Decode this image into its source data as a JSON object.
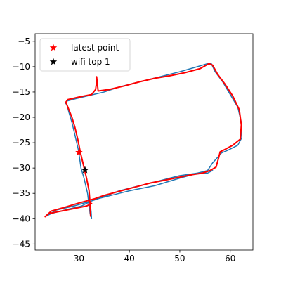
{
  "chart_data": {
    "type": "scatter",
    "title": "",
    "xlabel": "",
    "ylabel": "",
    "xlim": [
      21.3,
      64.5
    ],
    "ylim": [
      -46.2,
      -3.5
    ],
    "xticks": [
      20,
      30,
      40,
      50,
      60
    ],
    "yticks": [
      -45,
      -40,
      -35,
      -30,
      -25,
      -20,
      -15,
      -10,
      -5
    ],
    "grid": false,
    "legend_position": "top-left",
    "legend": [
      {
        "label": "latest point",
        "marker": "star",
        "color": "#ff0000"
      },
      {
        "label": "wifi top 1",
        "marker": "star",
        "color": "#000000"
      }
    ],
    "series": [
      {
        "style": "line",
        "color": "#1f77b4",
        "x": [
          32.1,
          32.4,
          32.5,
          32.2,
          31.7,
          31.0,
          30.4,
          29.9,
          29.2,
          28.6,
          28.0,
          27.6,
          27.3,
          27.6,
          29.5,
          32.0,
          35.0,
          38.0,
          42.0,
          46.0,
          50.0,
          53.5,
          55.5,
          56.2,
          57.0,
          58.5,
          60.0,
          61.5,
          62.2,
          62.3,
          61.5,
          59.5,
          58.3,
          57.4,
          56.5,
          55.5,
          53.5,
          50.0,
          46.0,
          42.0,
          38.0,
          34.5,
          32.5,
          29.0,
          25.5,
          23.5,
          24.5,
          27.5,
          30.5,
          32.5,
          34.0,
          38.0,
          40.0,
          45.0,
          50.0,
          53.0,
          55.5,
          56.5
        ],
        "y": [
          -36.5,
          -38.5,
          -40.0,
          -39.0,
          -35.0,
          -32.0,
          -30.0,
          -26.5,
          -23.5,
          -21.0,
          -19.0,
          -17.5,
          -17.2,
          -16.8,
          -16.3,
          -15.7,
          -15.0,
          -14.0,
          -13.0,
          -12.0,
          -11.0,
          -10.0,
          -9.4,
          -9.3,
          -11.0,
          -13.0,
          -15.5,
          -18.0,
          -21.0,
          -24.0,
          -25.5,
          -26.5,
          -27.0,
          -28.0,
          -29.0,
          -30.5,
          -31.0,
          -31.5,
          -32.5,
          -33.5,
          -34.5,
          -35.8,
          -36.5,
          -37.5,
          -38.3,
          -39.5,
          -39.0,
          -38.2,
          -37.5,
          -36.5,
          -36.0,
          -35.0,
          -34.5,
          -33.5,
          -32.0,
          -31.2,
          -31.0,
          -30.5
        ]
      },
      {
        "style": "line",
        "color": "#ff0000",
        "x": [
          32.3,
          32.2,
          32.0,
          31.5,
          30.9,
          30.3,
          29.8,
          29.2,
          28.6,
          28.0,
          27.6,
          27.4,
          27.8,
          30.0,
          32.5,
          33.3,
          33.5,
          33.5,
          33.8,
          36.0,
          39.0,
          42.0,
          45.0,
          48.0,
          51.0,
          54.0,
          55.8,
          56.5,
          57.5,
          59.0,
          60.5,
          61.8,
          62.2,
          62.0,
          60.5,
          59.0,
          58.0,
          57.7,
          57.2,
          56.0,
          54.5,
          52.5,
          50.0,
          47.0,
          44.0,
          41.0,
          38.0,
          35.0,
          33.0,
          30.0,
          27.0,
          24.5,
          23.3,
          24.0,
          26.0,
          29.0,
          31.5,
          32.5
        ],
        "y": [
          -39.5,
          -37.0,
          -34.5,
          -32.0,
          -29.5,
          -27.0,
          -24.5,
          -22.0,
          -20.0,
          -18.5,
          -17.5,
          -17.0,
          -16.5,
          -16.0,
          -15.5,
          -14.5,
          -13.0,
          -12.0,
          -14.8,
          -14.5,
          -13.8,
          -13.0,
          -12.3,
          -11.8,
          -11.2,
          -10.4,
          -9.4,
          -9.7,
          -11.5,
          -13.5,
          -15.8,
          -18.5,
          -21.5,
          -24.3,
          -25.5,
          -26.3,
          -26.8,
          -28.0,
          -29.8,
          -30.5,
          -31.0,
          -31.3,
          -31.8,
          -32.4,
          -33.0,
          -33.8,
          -34.6,
          -35.4,
          -36.1,
          -36.9,
          -37.8,
          -38.5,
          -39.6,
          -39.0,
          -38.6,
          -38.0,
          -37.5,
          -37.0
        ]
      },
      {
        "style": "scatter",
        "marker": "star",
        "name": "latest point",
        "color": "#ff0000",
        "x": [
          30.0
        ],
        "y": [
          -26.9
        ]
      },
      {
        "style": "scatter",
        "marker": "star",
        "name": "wifi top 1",
        "color": "#000000",
        "x": [
          31.2
        ],
        "y": [
          -30.4
        ]
      }
    ]
  }
}
